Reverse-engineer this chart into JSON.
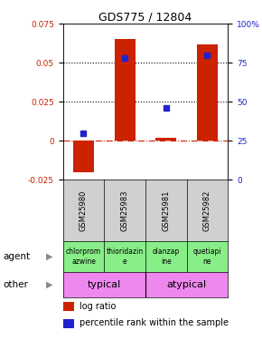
{
  "title": "GDS775 / 12804",
  "samples": [
    "GSM25980",
    "GSM25983",
    "GSM25981",
    "GSM25982"
  ],
  "log_ratios": [
    -0.02,
    0.065,
    0.002,
    0.062
  ],
  "percentile_ranks": [
    30,
    78,
    46,
    80
  ],
  "bar_color": "#cc2200",
  "dot_color": "#2222cc",
  "ylim_left": [
    -0.025,
    0.075
  ],
  "ylim_right": [
    0,
    100
  ],
  "yticks_left": [
    -0.025,
    0,
    0.025,
    0.05,
    0.075
  ],
  "ytick_labels_left": [
    "-0.025",
    "0",
    "0.025",
    "0.05",
    "0.075"
  ],
  "yticks_right": [
    0,
    25,
    50,
    75,
    100
  ],
  "ytick_labels_right": [
    "0",
    "25",
    "50",
    "75",
    "100%"
  ],
  "dotted_lines": [
    0.025,
    0.05
  ],
  "agent_texts": [
    "chlorprom\nazwine",
    "thioridazin\ne",
    "olanzap\nine",
    "quetiapi\nne"
  ],
  "agent_color": "#88ee88",
  "typical_color": "#ee88ee",
  "typical_label": "typical",
  "atypical_label": "atypical",
  "bar_color_legend": "#cc2200",
  "dot_color_legend": "#2222cc",
  "left_tick_color": "#cc2200",
  "right_tick_color": "#2222cc",
  "gray_bg": "#d0d0d0"
}
